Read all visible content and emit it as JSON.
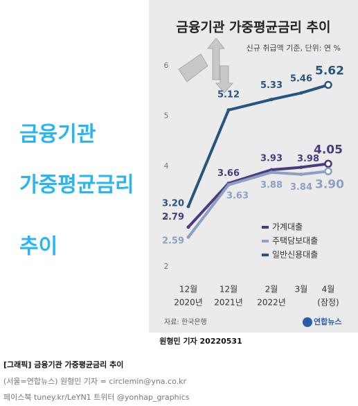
{
  "chart_data": {
    "type": "line",
    "title": "금융기관 가중평균금리 추이",
    "subtitle": "신규 취급액 기준, 단위: 연 %",
    "categories": [
      [
        "12월",
        "2020년"
      ],
      [
        "12월",
        "2021년"
      ],
      [
        "2월",
        "2022년"
      ],
      [
        "3월"
      ],
      [
        "4월",
        "(잠정)"
      ]
    ],
    "series": [
      {
        "name": "가계대출",
        "color": "#4b3b7c",
        "values": [
          2.79,
          3.66,
          3.93,
          3.98,
          4.05
        ]
      },
      {
        "name": "주택담보대출",
        "color": "#8ba0c2",
        "values": [
          2.59,
          3.63,
          3.88,
          3.84,
          3.9
        ],
        "value_labels": [
          "2.59",
          "3.63",
          "3.88",
          "3.84",
          "3.90"
        ]
      },
      {
        "name": "일반신용대출",
        "color": "#285480",
        "values": [
          3.2,
          5.12,
          5.33,
          5.46,
          5.62
        ],
        "value_labels": [
          "3.20",
          "5.12",
          "5.33",
          "5.46",
          "5.62"
        ]
      }
    ],
    "ylim": [
      2,
      6
    ],
    "yticks": [
      2,
      3,
      4,
      5,
      6
    ],
    "grid": false,
    "source": "자료: 한국은행",
    "logo": "연합뉴스"
  },
  "side_title": [
    "금융기관",
    "가중평균금리",
    "추이"
  ],
  "byline": "원형민 기자  20220531",
  "caption": [
    "[그래픽] 금융기관 가중평균금리 추이",
    "(서울=연합뉴스) 원형민 기자 = circlemin@yna.co.kr",
    "페이스북 tuney.kr/LeYN1 트위터 @yonhap_graphics"
  ]
}
